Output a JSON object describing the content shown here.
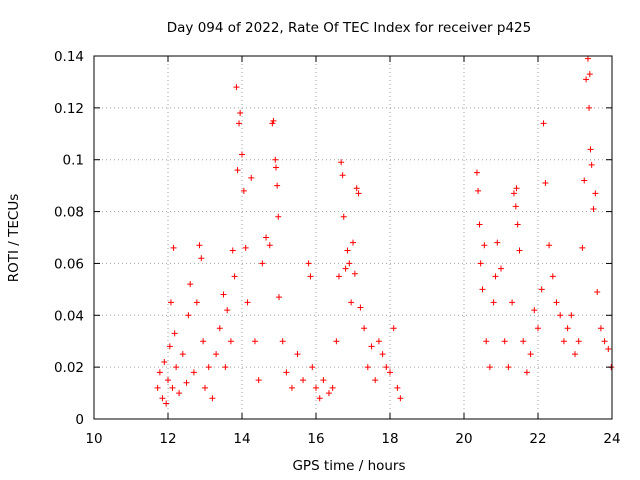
{
  "chart_data": {
    "type": "scatter",
    "title": "Day 094 of 2022, Rate Of TEC Index for receiver p425",
    "xlabel": "GPS time / hours",
    "ylabel": "ROTI / TECUs",
    "xlim": [
      10,
      24
    ],
    "ylim": [
      0,
      0.14
    ],
    "xticks": [
      10,
      12,
      14,
      16,
      18,
      20,
      22,
      24
    ],
    "yticks": [
      0,
      0.02,
      0.04,
      0.06,
      0.08,
      0.1,
      0.12,
      0.14
    ],
    "xtick_labels": [
      "10",
      "12",
      "14",
      "16",
      "18",
      "20",
      "22",
      "24"
    ],
    "ytick_labels": [
      "0",
      "0.02",
      "0.04",
      "0.06",
      "0.08",
      "0.1",
      "0.12",
      "0.14"
    ],
    "grid": true,
    "marker": "+",
    "color": "#ff0000",
    "series": [
      {
        "name": "ROTI",
        "note": "representative sample of visible points (dense cloud 11.7-18.3 h and 20.3-24 h)",
        "points": [
          [
            11.72,
            0.012
          ],
          [
            11.78,
            0.018
          ],
          [
            11.85,
            0.008
          ],
          [
            11.9,
            0.022
          ],
          [
            11.95,
            0.006
          ],
          [
            12.0,
            0.015
          ],
          [
            12.05,
            0.028
          ],
          [
            12.08,
            0.045
          ],
          [
            12.12,
            0.012
          ],
          [
            12.15,
            0.066
          ],
          [
            12.18,
            0.033
          ],
          [
            12.22,
            0.02
          ],
          [
            12.3,
            0.01
          ],
          [
            12.4,
            0.025
          ],
          [
            12.5,
            0.014
          ],
          [
            12.55,
            0.04
          ],
          [
            12.6,
            0.052
          ],
          [
            12.7,
            0.018
          ],
          [
            12.78,
            0.045
          ],
          [
            12.85,
            0.067
          ],
          [
            12.9,
            0.062
          ],
          [
            12.95,
            0.03
          ],
          [
            13.0,
            0.012
          ],
          [
            13.1,
            0.02
          ],
          [
            13.2,
            0.008
          ],
          [
            13.3,
            0.025
          ],
          [
            13.4,
            0.035
          ],
          [
            13.5,
            0.048
          ],
          [
            13.55,
            0.02
          ],
          [
            13.6,
            0.042
          ],
          [
            13.7,
            0.03
          ],
          [
            13.75,
            0.065
          ],
          [
            13.8,
            0.055
          ],
          [
            13.85,
            0.128
          ],
          [
            13.88,
            0.096
          ],
          [
            13.92,
            0.114
          ],
          [
            13.95,
            0.118
          ],
          [
            14.0,
            0.102
          ],
          [
            14.05,
            0.088
          ],
          [
            14.1,
            0.066
          ],
          [
            14.15,
            0.045
          ],
          [
            14.25,
            0.093
          ],
          [
            14.35,
            0.03
          ],
          [
            14.45,
            0.015
          ],
          [
            14.55,
            0.06
          ],
          [
            14.65,
            0.07
          ],
          [
            14.75,
            0.067
          ],
          [
            14.82,
            0.114
          ],
          [
            14.85,
            0.115
          ],
          [
            14.9,
            0.1
          ],
          [
            14.92,
            0.097
          ],
          [
            14.95,
            0.09
          ],
          [
            14.98,
            0.078
          ],
          [
            15.0,
            0.047
          ],
          [
            15.1,
            0.03
          ],
          [
            15.2,
            0.018
          ],
          [
            15.35,
            0.012
          ],
          [
            15.5,
            0.025
          ],
          [
            15.65,
            0.015
          ],
          [
            15.8,
            0.06
          ],
          [
            15.85,
            0.055
          ],
          [
            15.9,
            0.02
          ],
          [
            16.0,
            0.012
          ],
          [
            16.1,
            0.008
          ],
          [
            16.2,
            0.015
          ],
          [
            16.35,
            0.01
          ],
          [
            16.45,
            0.012
          ],
          [
            16.55,
            0.03
          ],
          [
            16.62,
            0.055
          ],
          [
            16.68,
            0.099
          ],
          [
            16.72,
            0.094
          ],
          [
            16.75,
            0.078
          ],
          [
            16.8,
            0.058
          ],
          [
            16.85,
            0.065
          ],
          [
            16.9,
            0.06
          ],
          [
            16.95,
            0.045
          ],
          [
            17.0,
            0.068
          ],
          [
            17.05,
            0.056
          ],
          [
            17.1,
            0.089
          ],
          [
            17.15,
            0.087
          ],
          [
            17.2,
            0.043
          ],
          [
            17.3,
            0.035
          ],
          [
            17.4,
            0.02
          ],
          [
            17.5,
            0.028
          ],
          [
            17.6,
            0.015
          ],
          [
            17.7,
            0.03
          ],
          [
            17.8,
            0.025
          ],
          [
            17.9,
            0.02
          ],
          [
            18.0,
            0.018
          ],
          [
            18.1,
            0.035
          ],
          [
            18.2,
            0.012
          ],
          [
            18.28,
            0.008
          ],
          [
            20.35,
            0.095
          ],
          [
            20.38,
            0.088
          ],
          [
            20.42,
            0.075
          ],
          [
            20.45,
            0.06
          ],
          [
            20.5,
            0.05
          ],
          [
            20.55,
            0.067
          ],
          [
            20.6,
            0.03
          ],
          [
            20.7,
            0.02
          ],
          [
            20.8,
            0.045
          ],
          [
            20.85,
            0.055
          ],
          [
            20.9,
            0.068
          ],
          [
            21.0,
            0.058
          ],
          [
            21.1,
            0.03
          ],
          [
            21.2,
            0.02
          ],
          [
            21.3,
            0.045
          ],
          [
            21.35,
            0.087
          ],
          [
            21.4,
            0.082
          ],
          [
            21.42,
            0.089
          ],
          [
            21.45,
            0.075
          ],
          [
            21.5,
            0.065
          ],
          [
            21.6,
            0.03
          ],
          [
            21.7,
            0.018
          ],
          [
            21.8,
            0.025
          ],
          [
            21.9,
            0.042
          ],
          [
            22.0,
            0.035
          ],
          [
            22.1,
            0.05
          ],
          [
            22.15,
            0.114
          ],
          [
            22.2,
            0.091
          ],
          [
            22.3,
            0.067
          ],
          [
            22.4,
            0.055
          ],
          [
            22.5,
            0.045
          ],
          [
            22.6,
            0.04
          ],
          [
            22.7,
            0.03
          ],
          [
            22.8,
            0.035
          ],
          [
            22.9,
            0.04
          ],
          [
            23.0,
            0.025
          ],
          [
            23.1,
            0.03
          ],
          [
            23.2,
            0.066
          ],
          [
            23.25,
            0.092
          ],
          [
            23.3,
            0.131
          ],
          [
            23.35,
            0.139
          ],
          [
            23.38,
            0.12
          ],
          [
            23.4,
            0.133
          ],
          [
            23.42,
            0.104
          ],
          [
            23.45,
            0.098
          ],
          [
            23.5,
            0.081
          ],
          [
            23.55,
            0.087
          ],
          [
            23.6,
            0.049
          ],
          [
            23.7,
            0.035
          ],
          [
            23.8,
            0.03
          ],
          [
            23.9,
            0.027
          ],
          [
            23.98,
            0.02
          ]
        ]
      }
    ]
  }
}
